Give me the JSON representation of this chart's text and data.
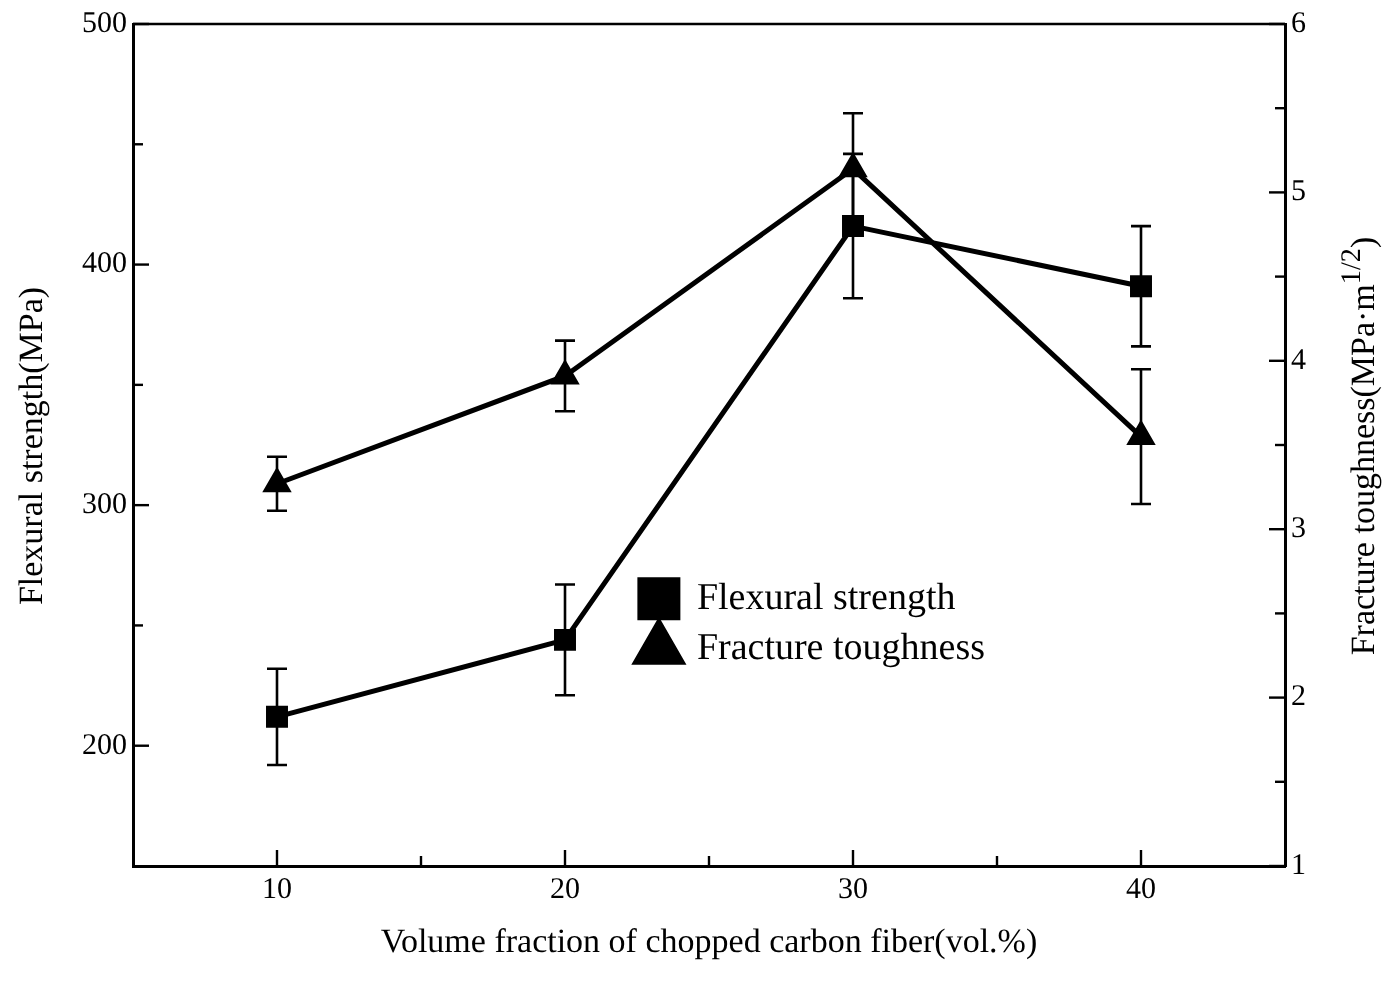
{
  "chart_data": {
    "type": "line",
    "xlabel": "Volume fraction of chopped  carbon fiber(vol.%)",
    "ylabel": "Flexural strength(MPa)",
    "y2label": "Fracture toughness(MPa·m$^{1/2}$)",
    "x": [
      10,
      20,
      30,
      40
    ],
    "xlim": [
      5,
      45
    ],
    "xticks": [
      10,
      {
        "value": 15,
        "label": null
      },
      20,
      {
        "value": 25,
        "label": null
      },
      30,
      {
        "value": 35,
        "label": null
      },
      40
    ],
    "ylim": [
      150,
      500
    ],
    "yticks": [
      200,
      {
        "value": 250,
        "label": null
      },
      300,
      {
        "value": 350,
        "label": null
      },
      400,
      {
        "value": 450,
        "label": null
      },
      500
    ],
    "y2lim": [
      1,
      6
    ],
    "y2ticks": [
      1,
      {
        "value": 1.5,
        "label": null
      },
      2,
      {
        "value": 2.5,
        "label": null
      },
      3,
      {
        "value": 3.5,
        "label": null
      },
      4,
      {
        "value": 4.5,
        "label": null
      },
      5,
      {
        "value": 5.5,
        "label": null
      },
      6
    ],
    "grid": false,
    "legend": "bottom right",
    "line_style": "solid",
    "series": [
      {
        "name": "Flexural strength",
        "color": "#000000",
        "marker": "square",
        "values": [
          212,
          244,
          416,
          391
        ],
        "errors": [
          20,
          23,
          30,
          25
        ]
      },
      {
        "name": "Fracture toughness",
        "color": "#000000",
        "marker": "triangle",
        "axis": "y2",
        "values": [
          3.27,
          3.91,
          5.14,
          3.55
        ],
        "errors": [
          0.16,
          0.21,
          0.33,
          0.4
        ]
      }
    ]
  }
}
